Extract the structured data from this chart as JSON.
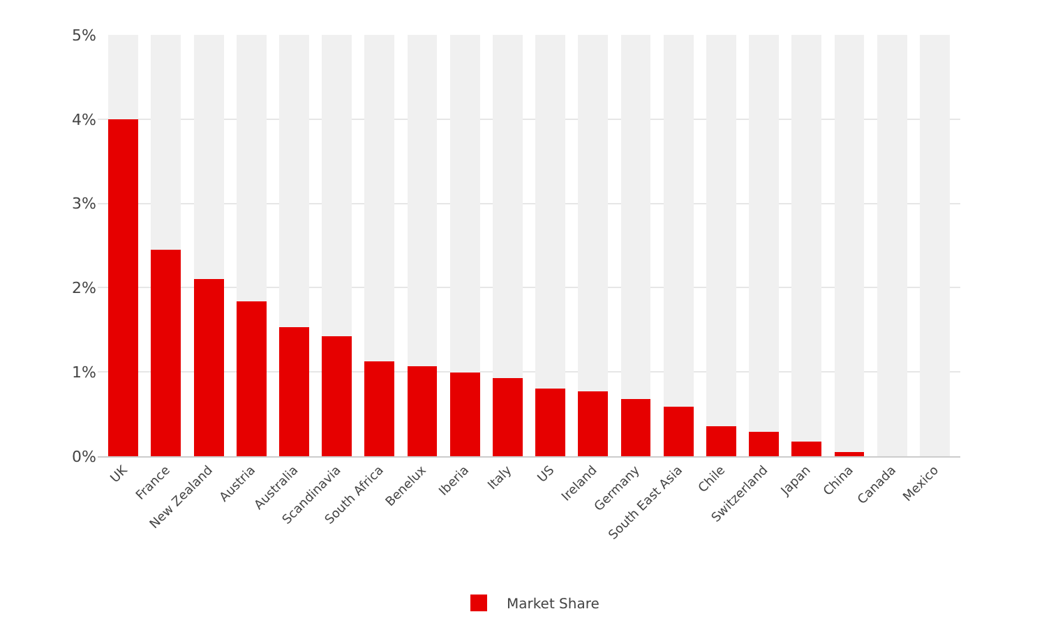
{
  "chart_data": {
    "type": "bar",
    "stacked": true,
    "categories": [
      "UK",
      "France",
      "New Zealand",
      "Austria",
      "Australia",
      "Scandinavia",
      "South Africa",
      "Benelux",
      "Iberia",
      "Italy",
      "US",
      "Ireland",
      "Germany",
      "South East Asia",
      "Chile",
      "Switzerland",
      "Japan",
      "China",
      "Canada",
      "Mexico"
    ],
    "series": [
      {
        "name": "Market Share",
        "color": "#e60000",
        "values": [
          4.0,
          2.45,
          2.1,
          1.84,
          1.53,
          1.42,
          1.13,
          1.07,
          0.99,
          0.93,
          0.8,
          0.77,
          0.68,
          0.59,
          0.36,
          0.29,
          0.17,
          0.05,
          0,
          0
        ]
      },
      {
        "color": "#f0f0f0",
        "values": [
          1.0,
          2.55,
          2.9,
          3.16,
          3.47,
          3.58,
          3.87,
          3.93,
          4.01,
          4.07,
          4.2,
          4.23,
          4.32,
          4.41,
          4.64,
          4.71,
          4.83,
          4.95,
          5,
          5
        ]
      }
    ],
    "ylim": [
      0,
      5
    ],
    "yticks": [
      {
        "value": 0,
        "label": "0%"
      },
      {
        "value": 1,
        "label": "1%"
      },
      {
        "value": 2,
        "label": "2%"
      },
      {
        "value": 3,
        "label": "3%"
      },
      {
        "value": 4,
        "label": "4%"
      },
      {
        "value": 5,
        "label": "5%"
      }
    ],
    "grid": "y",
    "legend": "bottom"
  }
}
